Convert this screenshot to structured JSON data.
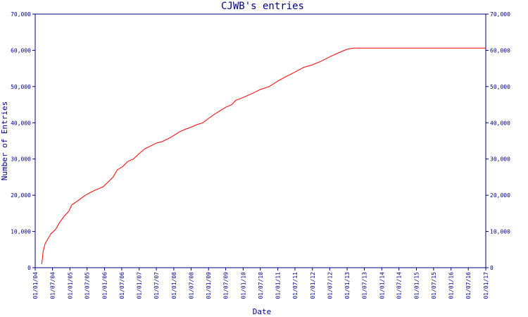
{
  "chart_data": {
    "type": "line",
    "title": "CJWB's entries",
    "xlabel": "Date",
    "ylabel": "Number of Entries",
    "ylim": [
      0,
      70000
    ],
    "xlim": [
      "2004-01-01",
      "2017-01-01"
    ],
    "y_ticks": [
      {
        "value": 0,
        "label": "0"
      },
      {
        "value": 10000,
        "label": "10,000"
      },
      {
        "value": 20000,
        "label": "20,000"
      },
      {
        "value": 30000,
        "label": "30,000"
      },
      {
        "value": 40000,
        "label": "40,000"
      },
      {
        "value": 50000,
        "label": "50,000"
      },
      {
        "value": 60000,
        "label": "60,000"
      },
      {
        "value": 70000,
        "label": "70,000"
      }
    ],
    "x_ticks": [
      {
        "date": "2004-01-01",
        "label": "01/01/04"
      },
      {
        "date": "2004-07-01",
        "label": "01/07/04"
      },
      {
        "date": "2005-01-01",
        "label": "01/01/05"
      },
      {
        "date": "2005-07-01",
        "label": "01/07/05"
      },
      {
        "date": "2006-01-01",
        "label": "01/01/06"
      },
      {
        "date": "2006-07-01",
        "label": "01/07/06"
      },
      {
        "date": "2007-01-01",
        "label": "01/01/07"
      },
      {
        "date": "2007-07-01",
        "label": "01/07/07"
      },
      {
        "date": "2008-01-01",
        "label": "01/01/08"
      },
      {
        "date": "2008-07-01",
        "label": "01/07/08"
      },
      {
        "date": "2009-01-01",
        "label": "01/01/09"
      },
      {
        "date": "2009-07-01",
        "label": "01/07/09"
      },
      {
        "date": "2010-01-01",
        "label": "01/01/10"
      },
      {
        "date": "2010-07-01",
        "label": "01/07/10"
      },
      {
        "date": "2011-01-01",
        "label": "01/01/11"
      },
      {
        "date": "2011-07-01",
        "label": "01/07/11"
      },
      {
        "date": "2012-01-01",
        "label": "01/01/12"
      },
      {
        "date": "2012-07-01",
        "label": "01/07/12"
      },
      {
        "date": "2013-01-01",
        "label": "01/01/13"
      },
      {
        "date": "2013-07-01",
        "label": "01/07/13"
      },
      {
        "date": "2014-01-01",
        "label": "01/01/14"
      },
      {
        "date": "2014-07-01",
        "label": "01/07/14"
      },
      {
        "date": "2015-01-01",
        "label": "01/01/15"
      },
      {
        "date": "2015-07-01",
        "label": "01/07/15"
      },
      {
        "date": "2016-01-01",
        "label": "01/01/16"
      },
      {
        "date": "2016-07-01",
        "label": "01/07/16"
      },
      {
        "date": "2017-01-01",
        "label": "01/01/17"
      }
    ],
    "series": [
      {
        "color": "#ff0000",
        "points": [
          {
            "x": "2004-03-10",
            "y": 1000
          },
          {
            "x": "2004-03-25",
            "y": 4500
          },
          {
            "x": "2004-04-15",
            "y": 6700
          },
          {
            "x": "2004-05-15",
            "y": 8000
          },
          {
            "x": "2004-06-15",
            "y": 9400
          },
          {
            "x": "2004-08-01",
            "y": 10500
          },
          {
            "x": "2004-09-15",
            "y": 12500
          },
          {
            "x": "2004-11-01",
            "y": 14200
          },
          {
            "x": "2004-12-20",
            "y": 15600
          },
          {
            "x": "2005-01-20",
            "y": 17300
          },
          {
            "x": "2005-04-01",
            "y": 18600
          },
          {
            "x": "2005-06-01",
            "y": 19800
          },
          {
            "x": "2005-08-01",
            "y": 20700
          },
          {
            "x": "2005-10-01",
            "y": 21500
          },
          {
            "x": "2005-12-15",
            "y": 22300
          },
          {
            "x": "2006-02-01",
            "y": 23500
          },
          {
            "x": "2006-04-01",
            "y": 25000
          },
          {
            "x": "2006-05-15",
            "y": 27000
          },
          {
            "x": "2006-07-15",
            "y": 28000
          },
          {
            "x": "2006-09-01",
            "y": 29300
          },
          {
            "x": "2006-11-01",
            "y": 30000
          },
          {
            "x": "2007-01-01",
            "y": 31500
          },
          {
            "x": "2007-03-01",
            "y": 32800
          },
          {
            "x": "2007-05-01",
            "y": 33600
          },
          {
            "x": "2007-07-01",
            "y": 34400
          },
          {
            "x": "2007-09-01",
            "y": 34800
          },
          {
            "x": "2007-11-01",
            "y": 35600
          },
          {
            "x": "2008-01-01",
            "y": 36500
          },
          {
            "x": "2008-03-01",
            "y": 37500
          },
          {
            "x": "2008-05-01",
            "y": 38200
          },
          {
            "x": "2008-07-01",
            "y": 38800
          },
          {
            "x": "2008-09-01",
            "y": 39500
          },
          {
            "x": "2008-11-01",
            "y": 40000
          },
          {
            "x": "2009-01-01",
            "y": 41200
          },
          {
            "x": "2009-03-01",
            "y": 42300
          },
          {
            "x": "2009-05-01",
            "y": 43300
          },
          {
            "x": "2009-07-01",
            "y": 44300
          },
          {
            "x": "2009-09-01",
            "y": 45000
          },
          {
            "x": "2009-10-15",
            "y": 46200
          },
          {
            "x": "2010-01-01",
            "y": 47000
          },
          {
            "x": "2010-04-01",
            "y": 48000
          },
          {
            "x": "2010-07-01",
            "y": 49200
          },
          {
            "x": "2010-10-01",
            "y": 50000
          },
          {
            "x": "2011-01-01",
            "y": 51500
          },
          {
            "x": "2011-04-01",
            "y": 52800
          },
          {
            "x": "2011-07-01",
            "y": 54000
          },
          {
            "x": "2011-10-01",
            "y": 55300
          },
          {
            "x": "2012-01-01",
            "y": 56000
          },
          {
            "x": "2012-04-01",
            "y": 57000
          },
          {
            "x": "2012-07-01",
            "y": 58200
          },
          {
            "x": "2012-10-01",
            "y": 59300
          },
          {
            "x": "2013-01-01",
            "y": 60300
          },
          {
            "x": "2013-03-15",
            "y": 60600
          },
          {
            "x": "2017-01-01",
            "y": 60600
          }
        ]
      }
    ]
  }
}
